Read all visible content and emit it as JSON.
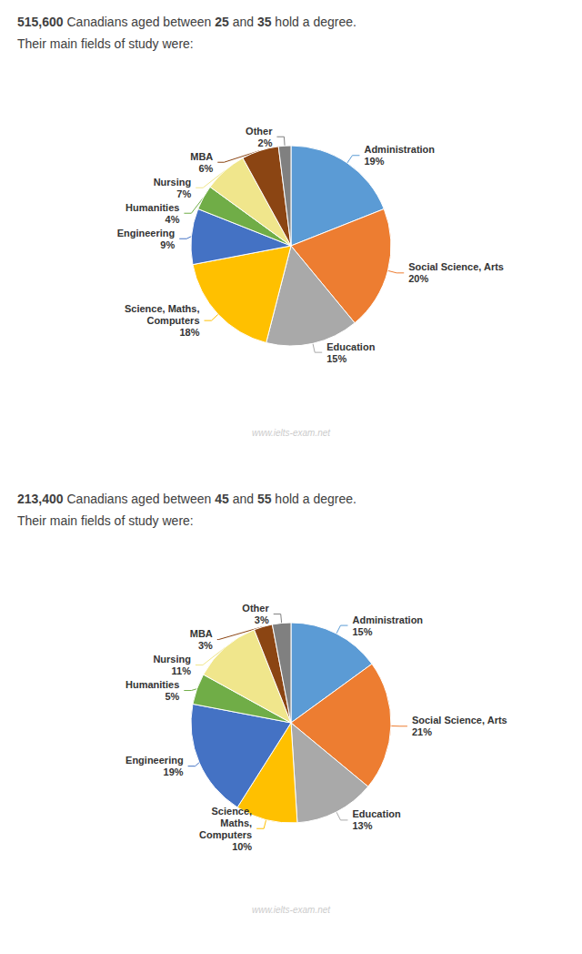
{
  "chart_data": [
    {
      "type": "pie",
      "title": "515,600 Canadians aged between 25 and 35 hold a degree.",
      "subtitle": "Their main fields of study were:",
      "categories": [
        "Administration",
        "Social Science, Arts",
        "Education",
        "Science, Maths,\nComputers",
        "Engineering",
        "Humanities",
        "Nursing",
        "MBA",
        "Other"
      ],
      "values": [
        19,
        20,
        15,
        18,
        9,
        4,
        7,
        6,
        2
      ],
      "value_labels": [
        "19%",
        "20%",
        "15%",
        "18%",
        "9%",
        "4%",
        "7%",
        "6%",
        "2%"
      ],
      "colors": [
        "#5B9BD5",
        "#ED7D31",
        "#A9A9A9",
        "#FFC000",
        "#4472C4",
        "#70AD47",
        "#F0E68C",
        "#8B4513",
        "#808080"
      ],
      "data_labels": true,
      "annotations": [
        "www.ielts-exam.net"
      ]
    },
    {
      "type": "pie",
      "title": "213,400 Canadians aged between 45 and 55 hold a degree.",
      "subtitle": "Their main fields of study were:",
      "categories": [
        "Administration",
        "Social Science, Arts",
        "Education",
        "Science,\nMaths,\nComputers",
        "Engineering",
        "Humanities",
        "Nursing",
        "MBA",
        "Other"
      ],
      "values": [
        15,
        21,
        13,
        10,
        19,
        5,
        11,
        3,
        3
      ],
      "value_labels": [
        "15%",
        "21%",
        "13%",
        "10%",
        "19%",
        "5%",
        "11%",
        "3%",
        "3%"
      ],
      "colors": [
        "#5B9BD5",
        "#ED7D31",
        "#A9A9A9",
        "#FFC000",
        "#4472C4",
        "#70AD47",
        "#F0E68C",
        "#8B4513",
        "#808080"
      ],
      "data_labels": true,
      "annotations": [
        "www.ielts-exam.net"
      ]
    }
  ]
}
